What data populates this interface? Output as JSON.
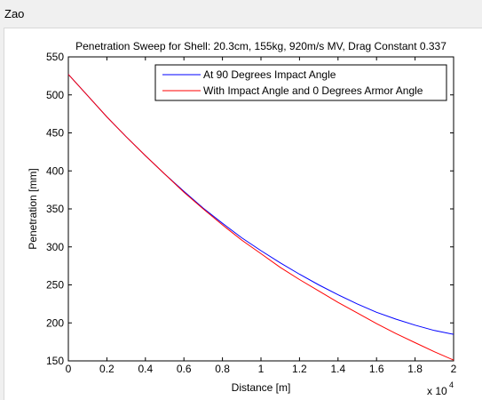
{
  "window": {
    "title": "Zao"
  },
  "colors": {
    "series1": "#0000ff",
    "series2": "#ff0000",
    "axis": "#000000",
    "background": "#ffffff"
  },
  "chart_data": {
    "type": "line",
    "title": "Penetration Sweep for Shell: 20.3cm, 155kg, 920m/s MV, Drag Constant 0.337",
    "xlabel": "Distance [m]",
    "ylabel": "Penetration [mm]",
    "x_exponent_label": "x 10",
    "x_exponent_power": "4",
    "xlim": [
      0,
      20000
    ],
    "ylim": [
      150,
      550
    ],
    "x_ticks": [
      0,
      2000,
      4000,
      6000,
      8000,
      10000,
      12000,
      14000,
      16000,
      18000,
      20000
    ],
    "x_tick_labels": [
      "0",
      "0.2",
      "0.4",
      "0.6",
      "0.8",
      "1",
      "1.2",
      "1.4",
      "1.6",
      "1.8",
      "2"
    ],
    "y_ticks": [
      150,
      200,
      250,
      300,
      350,
      400,
      450,
      500,
      550
    ],
    "y_tick_labels": [
      "150",
      "200",
      "250",
      "300",
      "350",
      "400",
      "450",
      "500",
      "550"
    ],
    "grid": false,
    "legend_position": "top-right",
    "series": [
      {
        "name": "At 90 Degrees Impact Angle",
        "color": "#0000ff",
        "x": [
          0,
          1000,
          2000,
          3000,
          4000,
          5000,
          6000,
          7000,
          8000,
          9000,
          10000,
          11000,
          12000,
          13000,
          14000,
          15000,
          16000,
          17000,
          18000,
          19000,
          20000
        ],
        "y": [
          527,
          499,
          471,
          445,
          420,
          396,
          373,
          351,
          331,
          312,
          295,
          279,
          264,
          250,
          237,
          225,
          214,
          205,
          197,
          190,
          185
        ]
      },
      {
        "name": "With Impact Angle and 0 Degrees Armor Angle",
        "color": "#ff0000",
        "x": [
          0,
          1000,
          2000,
          3000,
          4000,
          5000,
          6000,
          7000,
          8000,
          9000,
          10000,
          11000,
          12000,
          13000,
          14000,
          15000,
          16000,
          17000,
          18000,
          19000,
          20000
        ],
        "y": [
          527,
          499,
          471,
          445,
          420,
          396,
          372,
          350,
          329,
          309,
          291,
          273,
          257,
          242,
          227,
          213,
          199,
          186,
          174,
          162,
          151
        ]
      }
    ]
  }
}
